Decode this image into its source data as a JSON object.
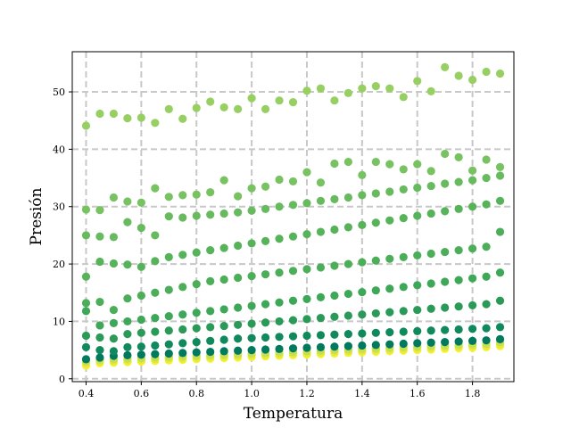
{
  "chart_data": {
    "type": "scatter",
    "xlabel": "Temperatura",
    "ylabel": "Presión",
    "xlim": [
      0.35,
      1.95
    ],
    "ylim": [
      -0.5,
      57
    ],
    "xticks": [
      0.4,
      0.6,
      0.8,
      1.0,
      1.2,
      1.4,
      1.6,
      1.8
    ],
    "xtick_labels": [
      "0.4",
      "0.6",
      "0.8",
      "1.0",
      "1.2",
      "1.4",
      "1.6",
      "1.8"
    ],
    "yticks": [
      0,
      10,
      20,
      30,
      40,
      50
    ],
    "ytick_labels": [
      "0",
      "10",
      "20",
      "30",
      "40",
      "50"
    ],
    "grid": true,
    "grid_style": "dashed",
    "x": [
      0.4,
      0.45,
      0.5,
      0.55,
      0.6,
      0.65,
      0.7,
      0.75,
      0.8,
      0.85,
      0.9,
      0.95,
      1.0,
      1.05,
      1.1,
      1.15,
      1.2,
      1.25,
      1.3,
      1.35,
      1.4,
      1.45,
      1.5,
      1.55,
      1.6,
      1.65,
      1.7,
      1.75,
      1.8,
      1.85,
      1.9
    ],
    "series": [
      {
        "color": "#f7f12d",
        "values": [
          2.3,
          2.7,
          2.8,
          2.9,
          3.0,
          3.1,
          3.2,
          3.3,
          3.4,
          3.5,
          3.6,
          3.7,
          3.8,
          3.9,
          4.0,
          4.1,
          4.2,
          4.3,
          4.4,
          4.5,
          4.6,
          4.7,
          4.8,
          4.9,
          5.0,
          5.1,
          5.2,
          5.3,
          5.4,
          5.5,
          5.7
        ]
      },
      {
        "color": "#e4ea3a",
        "values": [
          2.7,
          3.0,
          3.1,
          3.2,
          3.3,
          3.4,
          3.5,
          3.6,
          3.7,
          3.8,
          3.9,
          4.0,
          4.1,
          4.2,
          4.3,
          4.4,
          4.5,
          4.6,
          4.7,
          4.8,
          4.9,
          5.0,
          5.1,
          5.2,
          5.3,
          5.4,
          5.5,
          5.6,
          5.7,
          5.8,
          6.0
        ]
      },
      {
        "color": "#c5de52",
        "values": [
          3.0,
          3.3,
          3.4,
          3.5,
          3.6,
          3.7,
          3.8,
          3.9,
          4.0,
          4.1,
          4.2,
          4.3,
          4.4,
          4.5,
          4.6,
          4.7,
          4.8,
          4.9,
          5.0,
          5.1,
          5.2,
          5.3,
          5.4,
          5.5,
          5.6,
          5.7,
          5.8,
          5.9,
          6.0,
          6.1,
          6.4
        ]
      },
      {
        "color": "#007a5f",
        "values": [
          3.4,
          3.7,
          4.0,
          4.1,
          4.2,
          4.3,
          4.4,
          4.5,
          4.6,
          4.7,
          4.8,
          4.9,
          5.0,
          5.1,
          5.2,
          5.3,
          5.4,
          5.5,
          5.6,
          5.7,
          5.8,
          5.9,
          6.0,
          6.1,
          6.2,
          6.3,
          6.4,
          6.5,
          6.6,
          6.7,
          6.9
        ]
      },
      {
        "color": "#108a5c",
        "values": [
          5.5,
          5.0,
          4.8,
          5.5,
          5.6,
          5.8,
          6.0,
          6.2,
          6.4,
          6.6,
          6.8,
          7.0,
          7.1,
          7.2,
          7.3,
          7.4,
          7.5,
          7.6,
          7.7,
          7.8,
          7.9,
          8.0,
          8.1,
          8.2,
          8.3,
          8.4,
          8.5,
          8.6,
          8.7,
          8.8,
          9.0
        ]
      },
      {
        "color": "#2b9a58",
        "values": [
          7.5,
          7.2,
          7.0,
          7.8,
          8.0,
          8.2,
          8.4,
          8.6,
          8.8,
          9.0,
          9.2,
          9.4,
          9.6,
          9.8,
          10.0,
          10.2,
          10.4,
          10.6,
          10.8,
          11.0,
          11.2,
          11.4,
          11.6,
          11.8,
          12.0,
          12.2,
          12.4,
          12.6,
          12.8,
          13.0,
          13.6
        ]
      },
      {
        "color": "#3fa858",
        "values": [
          11.8,
          9.3,
          9.7,
          10.0,
          10.3,
          10.6,
          10.9,
          11.2,
          11.5,
          11.8,
          12.1,
          12.4,
          12.7,
          13.0,
          13.3,
          13.6,
          13.9,
          14.2,
          14.5,
          14.8,
          15.1,
          15.4,
          15.7,
          16.0,
          16.3,
          16.6,
          16.9,
          17.2,
          17.5,
          17.8,
          18.5
        ]
      },
      {
        "color": "#4cae58",
        "values": [
          13.2,
          13.4,
          12.0,
          14.0,
          14.5,
          15.0,
          15.5,
          16.0,
          16.5,
          17.0,
          17.3,
          17.6,
          17.9,
          18.2,
          18.5,
          18.8,
          19.1,
          19.4,
          19.7,
          20.0,
          20.3,
          20.6,
          20.9,
          21.2,
          21.5,
          21.8,
          22.1,
          22.4,
          22.7,
          23.0,
          25.6
        ]
      },
      {
        "color": "#56b35a",
        "values": [
          17.8,
          20.4,
          20.1,
          19.9,
          19.5,
          20.5,
          21.2,
          21.6,
          22.0,
          22.4,
          22.8,
          23.2,
          23.6,
          24.0,
          24.4,
          24.8,
          25.2,
          25.6,
          26.0,
          26.4,
          26.8,
          27.2,
          27.6,
          28.0,
          28.4,
          28.8,
          29.2,
          29.6,
          30.0,
          30.4,
          31.0
        ]
      },
      {
        "color": "#68ba5e",
        "values": [
          25.0,
          24.8,
          24.7,
          27.3,
          26.3,
          25.0,
          28.3,
          28.1,
          28.4,
          28.6,
          28.8,
          29.0,
          29.3,
          29.6,
          30.0,
          30.3,
          30.6,
          31.0,
          31.3,
          31.6,
          32.0,
          32.3,
          32.6,
          33.0,
          33.3,
          33.6,
          34.0,
          34.3,
          34.6,
          35.0,
          35.4
        ]
      },
      {
        "color": "#78c262",
        "values": [
          29.5,
          29.4,
          31.6,
          30.9,
          30.7,
          33.2,
          31.7,
          32.0,
          32.1,
          32.5,
          34.6,
          31.8,
          33.2,
          33.5,
          34.7,
          34.4,
          36.0,
          34.2,
          37.5,
          37.8,
          35.5,
          37.8,
          37.4,
          36.5,
          37.4,
          36.2,
          39.2,
          38.6,
          36.3,
          38.2,
          36.9
        ]
      },
      {
        "color": "#98cf63",
        "values": [
          44.1,
          46.2,
          46.2,
          45.4,
          45.5,
          44.6,
          47.0,
          45.3,
          47.2,
          48.3,
          47.3,
          47.0,
          48.9,
          47.0,
          48.5,
          48.2,
          50.2,
          50.6,
          48.5,
          49.8,
          50.6,
          51.0,
          50.6,
          49.1,
          51.9,
          50.1,
          54.3,
          52.8,
          52.1,
          53.5,
          53.2
        ]
      }
    ]
  }
}
